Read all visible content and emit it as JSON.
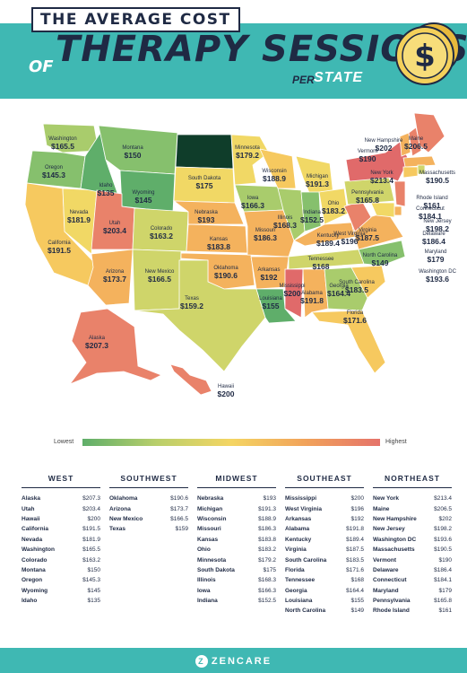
{
  "header": {
    "title_top": "THE AVERAGE COST",
    "title_of": "OF",
    "title_main": "THERAPY SESSIONS",
    "title_per": "PER",
    "title_state": "STATE",
    "coin_symbol": "$"
  },
  "legend": {
    "low": "Lowest",
    "high": "Highest"
  },
  "colors": {
    "teal": "#3fb8b3",
    "navy": "#1f2a44",
    "low": "#5fae6a",
    "mid": "#f4d563",
    "high": "#e5736a",
    "lowest_state": "#0f3d2a"
  },
  "map_labels": [
    {
      "name": "Washington",
      "value": "$165.5"
    },
    {
      "name": "Oregon",
      "value": "$145.3"
    },
    {
      "name": "Idaho",
      "value": "$135"
    },
    {
      "name": "Montana",
      "value": "$150"
    },
    {
      "name": "Wyoming",
      "value": "$145"
    },
    {
      "name": "Nevada",
      "value": "$181.9"
    },
    {
      "name": "California",
      "value": "$191.5"
    },
    {
      "name": "Utah",
      "value": "$203.4"
    },
    {
      "name": "Colorado",
      "value": "$163.2"
    },
    {
      "name": "Arizona",
      "value": "$173.7"
    },
    {
      "name": "New Mexico",
      "value": "$166.5"
    },
    {
      "name": "South Dakota",
      "value": "$175"
    },
    {
      "name": "Nebraska",
      "value": "$193"
    },
    {
      "name": "Kansas",
      "value": "$183.8"
    },
    {
      "name": "Oklahoma",
      "value": "$190.6"
    },
    {
      "name": "Texas",
      "value": "$159.2"
    },
    {
      "name": "Minnesota",
      "value": "$179.2"
    },
    {
      "name": "Iowa",
      "value": "$166.3"
    },
    {
      "name": "Missouri",
      "value": "$186.3"
    },
    {
      "name": "Arkansas",
      "value": "$192"
    },
    {
      "name": "Louisiana",
      "value": "$155"
    },
    {
      "name": "Wisconsin",
      "value": "$188.9"
    },
    {
      "name": "Illinois",
      "value": "$168.3"
    },
    {
      "name": "Michigan",
      "value": "$191.3"
    },
    {
      "name": "Indiana",
      "value": "$152.5"
    },
    {
      "name": "Ohio",
      "value": "$183.2"
    },
    {
      "name": "Kentucky",
      "value": "$189.4"
    },
    {
      "name": "Tennessee",
      "value": "$168"
    },
    {
      "name": "Mississippi",
      "value": "$200"
    },
    {
      "name": "Alabama",
      "value": "$191.8"
    },
    {
      "name": "Georgia",
      "value": "$164.4"
    },
    {
      "name": "Florida",
      "value": "$171.6"
    },
    {
      "name": "South Carolina",
      "value": "$183.5"
    },
    {
      "name": "North Carolina",
      "value": "$149"
    },
    {
      "name": "Virginia",
      "value": "$187.5"
    },
    {
      "name": "West Virginia",
      "value": "$196"
    },
    {
      "name": "Pennsylvania",
      "value": "$165.8"
    },
    {
      "name": "New York",
      "value": "$213.4"
    },
    {
      "name": "Vermont",
      "value": "$190"
    },
    {
      "name": "New Hampshire",
      "value": "$202"
    },
    {
      "name": "Maine",
      "value": "$206.5"
    },
    {
      "name": "Massachusetts",
      "value": "$190.5"
    },
    {
      "name": "Rhode Island",
      "value": "$161"
    },
    {
      "name": "Connecticut",
      "value": "$184.1"
    },
    {
      "name": "New Jersey",
      "value": "$198.2"
    },
    {
      "name": "Delaware",
      "value": "$186.4"
    },
    {
      "name": "Maryland",
      "value": "$179"
    },
    {
      "name": "Washington DC",
      "value": "$193.6"
    },
    {
      "name": "Alaska",
      "value": "$207.3"
    },
    {
      "name": "Hawaii",
      "value": "$200"
    }
  ],
  "regions": [
    {
      "title": "WEST",
      "rows": [
        {
          "state": "Alaska",
          "value": "$207.3"
        },
        {
          "state": "Utah",
          "value": "$203.4"
        },
        {
          "state": "Hawaii",
          "value": "$200"
        },
        {
          "state": "California",
          "value": "$191.5"
        },
        {
          "state": "Nevada",
          "value": "$181.9"
        },
        {
          "state": "Washington",
          "value": "$165.5"
        },
        {
          "state": "Colorado",
          "value": "$163.2"
        },
        {
          "state": "Montana",
          "value": "$150"
        },
        {
          "state": "Oregon",
          "value": "$145.3"
        },
        {
          "state": "Wyoming",
          "value": "$145"
        },
        {
          "state": "Idaho",
          "value": "$135"
        }
      ]
    },
    {
      "title": "SOUTHWEST",
      "rows": [
        {
          "state": "Oklahoma",
          "value": "$190.6"
        },
        {
          "state": "Arizona",
          "value": "$173.7"
        },
        {
          "state": "New Mexico",
          "value": "$166.5"
        },
        {
          "state": "Texas",
          "value": "$159"
        }
      ]
    },
    {
      "title": "MIDWEST",
      "rows": [
        {
          "state": "Nebraska",
          "value": "$193"
        },
        {
          "state": "Michigan",
          "value": "$191.3"
        },
        {
          "state": "Wisconsin",
          "value": "$188.9"
        },
        {
          "state": "Missouri",
          "value": "$186.3"
        },
        {
          "state": "Kansas",
          "value": "$183.8"
        },
        {
          "state": "Ohio",
          "value": "$183.2"
        },
        {
          "state": "Minnesota",
          "value": "$179.2"
        },
        {
          "state": "South Dakota",
          "value": "$175"
        },
        {
          "state": "Illinois",
          "value": "$168.3"
        },
        {
          "state": "Iowa",
          "value": "$166.3"
        },
        {
          "state": "Indiana",
          "value": "$152.5"
        }
      ]
    },
    {
      "title": "SOUTHEAST",
      "rows": [
        {
          "state": "Mississippi",
          "value": "$200"
        },
        {
          "state": "West Virginia",
          "value": "$196"
        },
        {
          "state": "Arkansas",
          "value": "$192"
        },
        {
          "state": "Alabama",
          "value": "$191.8"
        },
        {
          "state": "Kentucky",
          "value": "$189.4"
        },
        {
          "state": "Virginia",
          "value": "$187.5"
        },
        {
          "state": "South Carolina",
          "value": "$183.5"
        },
        {
          "state": "Florida",
          "value": "$171.6"
        },
        {
          "state": "Tennessee",
          "value": "$168"
        },
        {
          "state": "Georgia",
          "value": "$164.4"
        },
        {
          "state": "Louisiana",
          "value": "$155"
        },
        {
          "state": "North Carolina",
          "value": "$149"
        }
      ]
    },
    {
      "title": "NORTHEAST",
      "rows": [
        {
          "state": "New York",
          "value": "$213.4"
        },
        {
          "state": "Maine",
          "value": "$206.5"
        },
        {
          "state": "New Hampshire",
          "value": "$202"
        },
        {
          "state": "New Jersey",
          "value": "$198.2"
        },
        {
          "state": "Washington DC",
          "value": "$193.6"
        },
        {
          "state": "Massachusetts",
          "value": "$190.5"
        },
        {
          "state": "Vermont",
          "value": "$190"
        },
        {
          "state": "Delaware",
          "value": "$186.4"
        },
        {
          "state": "Connecticut",
          "value": "$184.1"
        },
        {
          "state": "Maryland",
          "value": "$179"
        },
        {
          "state": "Pennsylvania",
          "value": "$165.8"
        },
        {
          "state": "Rhode Island",
          "value": "$161"
        }
      ]
    }
  ],
  "footer": {
    "brand": "ZENCARE",
    "logo_letter": "Z"
  }
}
